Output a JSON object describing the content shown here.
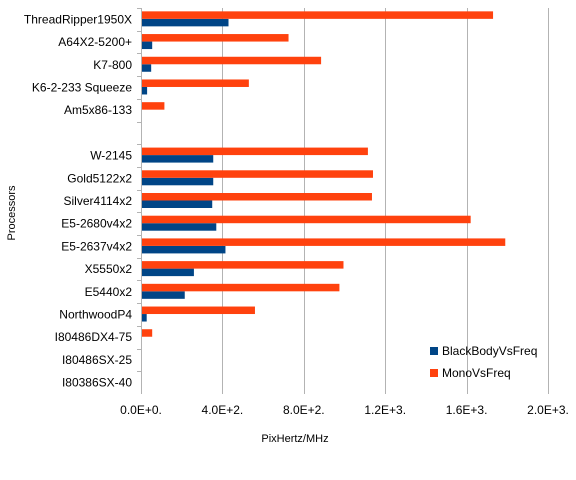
{
  "chart_data": {
    "type": "bar",
    "orientation": "horizontal",
    "ylabel": "Processors",
    "xlabel": "PixHertz/MHz",
    "xlim": [
      0,
      2000
    ],
    "x_ticks": [
      0,
      400,
      800,
      1200,
      1600,
      2000
    ],
    "x_tick_labels": [
      "0.0E+0.",
      "4.0E+2.",
      "8.0E+2.",
      "1.2E+3.",
      "1.6E+3.",
      "2.0E+3."
    ],
    "grid": "vertical",
    "legend_position": "bottom-right",
    "categories": [
      "ThreadRipper1950X",
      "A64X2-5200+",
      "K7-800",
      "K6-2-233 Squeeze",
      "Am5x86-133",
      "",
      "W-2145",
      "Gold5122x2",
      "Silver4114x2",
      "E5-2680v4x2",
      "E5-2637v4x2",
      "X5550x2",
      "E5440x2",
      "NorthwoodP4",
      "I80486DX4-75",
      "I80486SX-25",
      "I80386SX-40"
    ],
    "series": [
      {
        "name": "BlackBodyVsFreq",
        "color": "#004586",
        "values": [
          430,
          55,
          50,
          30,
          0,
          null,
          355,
          355,
          350,
          370,
          415,
          260,
          215,
          28,
          0,
          0,
          0
        ]
      },
      {
        "name": "MonoVsFreq",
        "color": "#ff420e",
        "values": [
          1730,
          725,
          885,
          530,
          115,
          null,
          1115,
          1140,
          1135,
          1620,
          1790,
          995,
          975,
          560,
          55,
          0,
          0
        ]
      }
    ]
  }
}
